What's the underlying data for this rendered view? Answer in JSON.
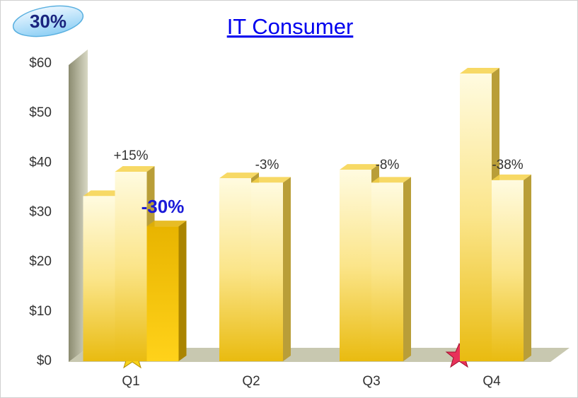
{
  "chart_data": {
    "type": "bar",
    "title": "IT Consumer",
    "badge": "30%",
    "categories": [
      "Q1",
      "Q2",
      "Q3",
      "Q4"
    ],
    "series": [
      {
        "color": "#f6d24a",
        "values": [
          33.3,
          36.9,
          38.6,
          58
        ]
      },
      {
        "color": "#f6d24a",
        "values": [
          38.2,
          36,
          36,
          36.5
        ]
      },
      {
        "color": "#e3b000",
        "values": [
          27.2,
          null,
          null,
          null
        ]
      }
    ],
    "annotations": [
      "+15%",
      "-3%",
      "-8%",
      "-38%"
    ],
    "highlight_label": "-30%",
    "ylim": [
      0,
      60
    ],
    "yticks": [
      {
        "value": 0,
        "label": "$0"
      },
      {
        "value": 10,
        "label": "$10"
      },
      {
        "value": 20,
        "label": "$20"
      },
      {
        "value": 30,
        "label": "$30"
      },
      {
        "value": 40,
        "label": "$40"
      },
      {
        "value": 50,
        "label": "$50"
      },
      {
        "value": 60,
        "label": "$60"
      }
    ],
    "grid": false
  }
}
